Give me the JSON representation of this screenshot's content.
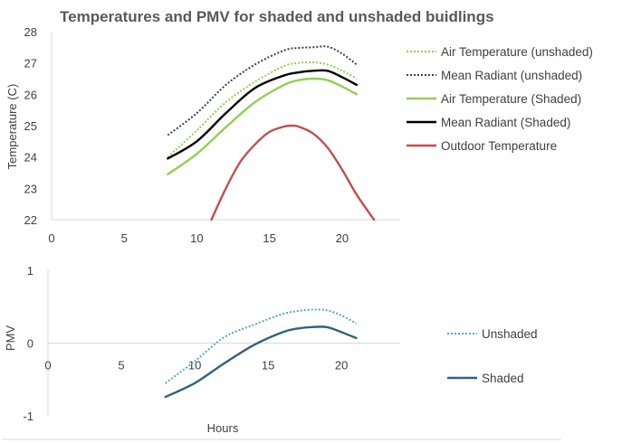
{
  "chart_data": [
    {
      "type": "line",
      "title": "Temperatures and PMV for shaded and unshaded buidlings",
      "xlabel": "",
      "ylabel": "Temperature (C)",
      "xlim": [
        0,
        24
      ],
      "ylim": [
        22,
        28
      ],
      "x_ticks": [
        "0",
        "5",
        "10",
        "15",
        "20"
      ],
      "y_ticks": [
        "22",
        "23",
        "24",
        "25",
        "26",
        "27",
        "28"
      ],
      "grid": false,
      "legend_position": "right",
      "series": [
        {
          "name": "Air Temperature (unshaded)",
          "color": "#92D050",
          "style": "dotted",
          "x": [
            8,
            10,
            12,
            14,
            16,
            17,
            18,
            19,
            20,
            21
          ],
          "y": [
            24.0,
            24.85,
            25.75,
            26.4,
            26.9,
            27.0,
            27.02,
            26.95,
            26.75,
            26.5
          ]
        },
        {
          "name": "Mean Radiant (unshaded)",
          "color": "#404040",
          "style": "dotted",
          "x": [
            8,
            10,
            12,
            14,
            16,
            17,
            18,
            19,
            20,
            21
          ],
          "y": [
            24.7,
            25.4,
            26.3,
            26.95,
            27.4,
            27.48,
            27.5,
            27.52,
            27.3,
            26.95
          ]
        },
        {
          "name": "Air Temperature (Shaded)",
          "color": "#92D050",
          "style": "solid",
          "x": [
            8,
            10,
            12,
            14,
            16,
            17,
            18,
            19,
            20,
            21
          ],
          "y": [
            23.45,
            24.1,
            24.95,
            25.75,
            26.3,
            26.45,
            26.5,
            26.45,
            26.25,
            26.0
          ]
        },
        {
          "name": "Mean Radiant (Shaded)",
          "color": "#000000",
          "style": "solid",
          "x": [
            8,
            10,
            12,
            14,
            16,
            17,
            18,
            19,
            20,
            21
          ],
          "y": [
            23.95,
            24.5,
            25.4,
            26.2,
            26.6,
            26.7,
            26.75,
            26.75,
            26.55,
            26.3
          ]
        },
        {
          "name": "Outdoor Temperature",
          "color": "#C0504D",
          "style": "solid",
          "x": [
            11,
            12,
            13,
            14,
            15,
            16,
            16.5,
            17,
            18,
            19,
            20,
            21,
            22.2
          ],
          "y": [
            22.0,
            23.0,
            23.85,
            24.4,
            24.8,
            24.97,
            25.0,
            24.97,
            24.75,
            24.3,
            23.6,
            22.8,
            22.0
          ]
        }
      ]
    },
    {
      "type": "line",
      "title": "",
      "xlabel": "Hours",
      "ylabel": "PMV",
      "xlim": [
        0,
        24
      ],
      "ylim": [
        -1,
        1
      ],
      "x_ticks": [
        "0",
        "5",
        "10",
        "15",
        "20"
      ],
      "y_ticks": [
        "-1",
        "0",
        "1"
      ],
      "grid": false,
      "legend_position": "right",
      "series": [
        {
          "name": "Unshaded",
          "color": "#4BACC6",
          "style": "dotted",
          "x": [
            8,
            10,
            12,
            14,
            16,
            17,
            18,
            19,
            20,
            21
          ],
          "y": [
            -0.55,
            -0.25,
            0.08,
            0.25,
            0.4,
            0.44,
            0.46,
            0.45,
            0.38,
            0.27
          ]
        },
        {
          "name": "Shaded",
          "color": "#31647A",
          "style": "solid",
          "x": [
            8,
            10,
            12,
            14,
            16,
            17,
            18,
            19,
            20,
            21
          ],
          "y": [
            -0.74,
            -0.55,
            -0.28,
            -0.03,
            0.15,
            0.2,
            0.22,
            0.22,
            0.15,
            0.07
          ]
        }
      ]
    }
  ]
}
